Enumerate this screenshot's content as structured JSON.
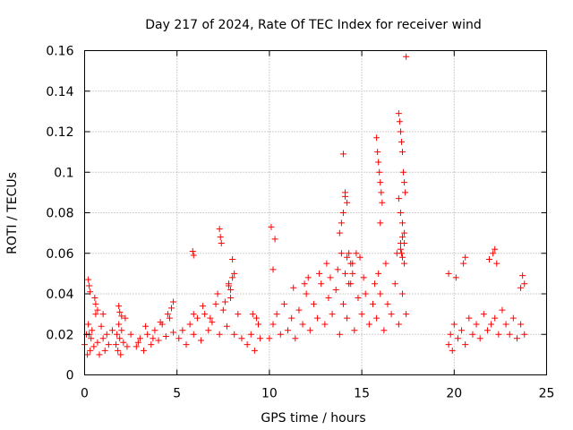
{
  "chart_data": {
    "type": "scatter",
    "title": "Day 217 of 2024, Rate Of TEC Index for receiver wind",
    "xlabel": "GPS time / hours",
    "ylabel": "ROTI / TECUs",
    "xlim": [
      0,
      25
    ],
    "ylim": [
      0,
      0.16
    ],
    "xticks": [
      0,
      5,
      10,
      15,
      20,
      25
    ],
    "xtick_labels": [
      "0",
      "5",
      "10",
      "15",
      "20",
      "25"
    ],
    "yticks": [
      0,
      0.02,
      0.04,
      0.06,
      0.08,
      0.1,
      0.12,
      0.14,
      0.16
    ],
    "ytick_labels": [
      "0",
      "0.02",
      "0.04",
      "0.06",
      "0.08",
      "0.1",
      "0.12",
      "0.14",
      "0.16"
    ],
    "grid": true,
    "marker": "+",
    "color": "#ff0000",
    "series": [
      {
        "name": "ROTI",
        "x": [
          0.0,
          0.1,
          0.15,
          0.2,
          0.25,
          0.3,
          0.35,
          0.4,
          0.5,
          0.6,
          0.7,
          0.8,
          0.9,
          1.0,
          1.1,
          1.2,
          1.3,
          0.2,
          0.25,
          0.3,
          0.55,
          0.6,
          0.7,
          1.0,
          1.5,
          1.7,
          1.75,
          1.8,
          1.85,
          1.9,
          1.95,
          2.0,
          2.1,
          2.2,
          2.3,
          1.85,
          1.9,
          2.0,
          2.5,
          2.8,
          3.0,
          3.2,
          3.4,
          3.6,
          3.8,
          4.0,
          4.2,
          4.4,
          4.6,
          4.8,
          2.9,
          3.3,
          3.7,
          4.1,
          4.5,
          4.7,
          4.8,
          5.1,
          5.3,
          5.5,
          5.7,
          5.9,
          6.1,
          6.3,
          6.5,
          6.7,
          6.9,
          7.1,
          7.3,
          7.5,
          7.7,
          7.9,
          8.1,
          8.3,
          8.5,
          5.9,
          6.4,
          6.8,
          7.2,
          7.6,
          7.8,
          8.0,
          7.3,
          7.35,
          7.4,
          5.85,
          5.9,
          8.0,
          8.1,
          7.8,
          7.9,
          8.8,
          9.0,
          9.2,
          9.4,
          9.5,
          9.1,
          9.3,
          10.0,
          10.2,
          10.4,
          10.6,
          10.8,
          11.0,
          11.2,
          11.4,
          11.6,
          11.8,
          12.0,
          12.2,
          12.4,
          12.6,
          12.8,
          13.0,
          13.2,
          13.4,
          13.6,
          13.8,
          14.0,
          14.2,
          14.4,
          14.6,
          14.8,
          15.0,
          15.2,
          15.4,
          15.6,
          15.8,
          16.0,
          16.2,
          16.4,
          16.6,
          16.8,
          17.0,
          17.2,
          17.4,
          10.1,
          10.3,
          10.2,
          11.3,
          11.9,
          12.1,
          12.7,
          13.1,
          13.3,
          13.7,
          13.9,
          14.1,
          14.3,
          14.5,
          14.7,
          14.9,
          15.1,
          15.7,
          15.9,
          16.3,
          16.9,
          17.1,
          17.3,
          13.8,
          13.9,
          14.0,
          14.1,
          14.2,
          14.3,
          14.4,
          14.5,
          14.0,
          14.1,
          14.2,
          15.8,
          15.85,
          15.9,
          15.95,
          16.0,
          16.05,
          16.1,
          16.0,
          17.0,
          17.05,
          17.1,
          17.15,
          17.2,
          17.25,
          17.3,
          17.35,
          17.0,
          17.1,
          17.2,
          17.3,
          17.2,
          17.3,
          17.1,
          17.15,
          17.2,
          17.4,
          19.7,
          19.8,
          19.9,
          20.0,
          20.2,
          20.4,
          20.6,
          20.8,
          21.0,
          21.2,
          21.4,
          21.6,
          21.8,
          22.0,
          22.2,
          22.4,
          22.6,
          22.8,
          23.0,
          23.2,
          23.4,
          23.6,
          23.8,
          19.7,
          20.1,
          20.5,
          20.6,
          21.9,
          22.1,
          22.2,
          22.3,
          23.7,
          23.8,
          23.6
        ],
        "y": [
          0.015,
          0.02,
          0.01,
          0.025,
          0.02,
          0.012,
          0.018,
          0.022,
          0.014,
          0.03,
          0.016,
          0.01,
          0.024,
          0.018,
          0.012,
          0.02,
          0.015,
          0.047,
          0.044,
          0.041,
          0.038,
          0.035,
          0.032,
          0.03,
          0.022,
          0.015,
          0.02,
          0.012,
          0.025,
          0.018,
          0.01,
          0.022,
          0.016,
          0.028,
          0.014,
          0.034,
          0.031,
          0.029,
          0.02,
          0.014,
          0.018,
          0.012,
          0.02,
          0.015,
          0.022,
          0.017,
          0.025,
          0.019,
          0.028,
          0.021,
          0.016,
          0.024,
          0.018,
          0.026,
          0.03,
          0.033,
          0.036,
          0.018,
          0.022,
          0.015,
          0.025,
          0.02,
          0.028,
          0.017,
          0.03,
          0.022,
          0.026,
          0.035,
          0.02,
          0.032,
          0.024,
          0.038,
          0.02,
          0.03,
          0.018,
          0.03,
          0.034,
          0.028,
          0.04,
          0.036,
          0.044,
          0.048,
          0.072,
          0.068,
          0.065,
          0.061,
          0.059,
          0.057,
          0.05,
          0.045,
          0.042,
          0.015,
          0.02,
          0.012,
          0.025,
          0.018,
          0.03,
          0.028,
          0.018,
          0.025,
          0.03,
          0.02,
          0.035,
          0.022,
          0.028,
          0.018,
          0.032,
          0.025,
          0.04,
          0.022,
          0.035,
          0.028,
          0.045,
          0.025,
          0.038,
          0.03,
          0.042,
          0.02,
          0.035,
          0.028,
          0.045,
          0.022,
          0.038,
          0.03,
          0.04,
          0.025,
          0.035,
          0.028,
          0.04,
          0.022,
          0.035,
          0.03,
          0.045,
          0.025,
          0.04,
          0.03,
          0.073,
          0.067,
          0.052,
          0.043,
          0.045,
          0.048,
          0.05,
          0.055,
          0.048,
          0.052,
          0.06,
          0.05,
          0.045,
          0.055,
          0.06,
          0.058,
          0.048,
          0.045,
          0.05,
          0.055,
          0.06,
          0.065,
          0.055,
          0.07,
          0.075,
          0.08,
          0.088,
          0.058,
          0.06,
          0.055,
          0.05,
          0.109,
          0.09,
          0.085,
          0.117,
          0.11,
          0.105,
          0.1,
          0.095,
          0.09,
          0.085,
          0.075,
          0.129,
          0.125,
          0.12,
          0.115,
          0.11,
          0.1,
          0.095,
          0.09,
          0.087,
          0.08,
          0.075,
          0.07,
          0.068,
          0.065,
          0.062,
          0.06,
          0.058,
          0.157,
          0.015,
          0.02,
          0.012,
          0.025,
          0.018,
          0.022,
          0.015,
          0.028,
          0.02,
          0.025,
          0.018,
          0.03,
          0.022,
          0.025,
          0.028,
          0.02,
          0.032,
          0.025,
          0.02,
          0.028,
          0.018,
          0.025,
          0.02,
          0.05,
          0.048,
          0.055,
          0.058,
          0.057,
          0.06,
          0.062,
          0.055,
          0.049,
          0.045,
          0.043
        ]
      }
    ]
  }
}
